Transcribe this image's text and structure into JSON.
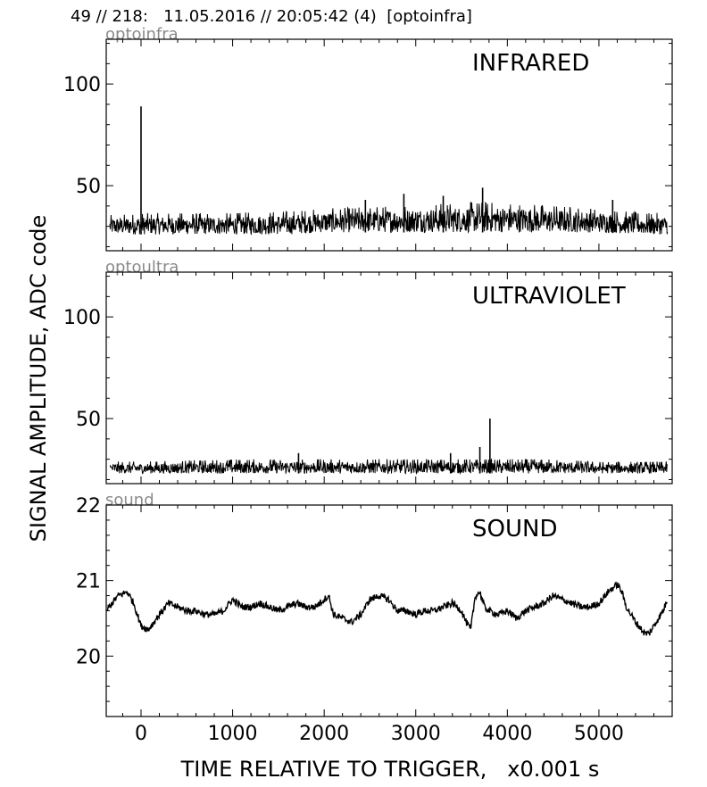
{
  "page_title": "49 // 218:   11.05.2016 // 20:05:42 (4)  [optoinfra]",
  "ylabel": "SIGNAL AMPLITUDE,  ADC code",
  "xlabel": "TIME RELATIVE TO TRIGGER,   x0.001 s",
  "chart_data": [
    {
      "type": "line",
      "sensor_tag": "optoinfra",
      "title": "INFRARED",
      "xlim": [
        -380,
        5800
      ],
      "ylim": [
        18,
        122
      ],
      "xticks": [
        0,
        1000,
        2000,
        3000,
        4000,
        5000
      ],
      "yticks": [
        50,
        100
      ],
      "grid": false,
      "noise_band": {
        "x": [
          -380,
          0,
          1000,
          1600,
          2000,
          2600,
          3200,
          3700,
          4300,
          5000,
          5500,
          5750
        ],
        "low": [
          26,
          26,
          26,
          26,
          27,
          27,
          27,
          27,
          27,
          27,
          26,
          26
        ],
        "high": [
          34,
          35,
          35,
          36,
          37,
          38,
          39,
          40,
          39,
          37,
          35,
          35
        ]
      },
      "spikes": [
        {
          "x": 0,
          "y": 89
        },
        {
          "x": 2870,
          "y": 46
        },
        {
          "x": 3300,
          "y": 45
        },
        {
          "x": 3730,
          "y": 49
        },
        {
          "x": 5150,
          "y": 43
        },
        {
          "x": 2450,
          "y": 43
        }
      ]
    },
    {
      "type": "line",
      "sensor_tag": "optoultra",
      "title": "ULTRAVIOLET",
      "xlim": [
        -380,
        5800
      ],
      "ylim": [
        18,
        122
      ],
      "xticks": [
        0,
        1000,
        2000,
        3000,
        4000,
        5000
      ],
      "yticks": [
        50,
        100
      ],
      "grid": false,
      "noise_band": {
        "x": [
          -380,
          0,
          1000,
          2000,
          3000,
          3800,
          4500,
          5000,
          5750
        ],
        "low": [
          23,
          23,
          23,
          23,
          23,
          23,
          23,
          23,
          23
        ],
        "high": [
          28,
          28,
          29,
          29,
          29,
          29,
          29,
          28,
          28
        ]
      },
      "spikes": [
        {
          "x": 3810,
          "y": 50
        },
        {
          "x": 3700,
          "y": 36
        },
        {
          "x": 3380,
          "y": 33
        },
        {
          "x": 1720,
          "y": 33
        }
      ]
    },
    {
      "type": "line",
      "sensor_tag": "sound",
      "title": "SOUND",
      "xlim": [
        -380,
        5800
      ],
      "ylim": [
        19.2,
        22
      ],
      "xticks": [
        0,
        1000,
        2000,
        3000,
        4000,
        5000
      ],
      "yticks": [
        20,
        21,
        22
      ],
      "grid": false,
      "x": [
        -380,
        -250,
        -150,
        -80,
        0,
        80,
        200,
        300,
        400,
        500,
        600,
        700,
        800,
        900,
        1000,
        1100,
        1200,
        1300,
        1400,
        1500,
        1600,
        1700,
        1800,
        1900,
        2000,
        2050,
        2100,
        2200,
        2300,
        2400,
        2500,
        2600,
        2700,
        2800,
        2900,
        3000,
        3100,
        3200,
        3300,
        3400,
        3500,
        3550,
        3600,
        3650,
        3700,
        3750,
        3800,
        3900,
        4000,
        4100,
        4200,
        4300,
        4400,
        4500,
        4600,
        4700,
        4800,
        4900,
        5000,
        5100,
        5200,
        5250,
        5300,
        5400,
        5500,
        5550,
        5600,
        5700,
        5750
      ],
      "y": [
        20.6,
        20.8,
        20.85,
        20.7,
        20.4,
        20.35,
        20.55,
        20.7,
        20.65,
        20.6,
        20.6,
        20.55,
        20.55,
        20.6,
        20.75,
        20.65,
        20.65,
        20.7,
        20.65,
        20.6,
        20.65,
        20.7,
        20.65,
        20.65,
        20.75,
        20.8,
        20.55,
        20.5,
        20.45,
        20.55,
        20.75,
        20.8,
        20.75,
        20.6,
        20.6,
        20.55,
        20.6,
        20.6,
        20.65,
        20.7,
        20.6,
        20.45,
        20.35,
        20.8,
        20.85,
        20.65,
        20.6,
        20.55,
        20.6,
        20.5,
        20.6,
        20.65,
        20.7,
        20.8,
        20.75,
        20.7,
        20.65,
        20.65,
        20.7,
        20.85,
        20.95,
        20.85,
        20.65,
        20.45,
        20.3,
        20.3,
        20.4,
        20.6,
        20.75
      ]
    }
  ]
}
